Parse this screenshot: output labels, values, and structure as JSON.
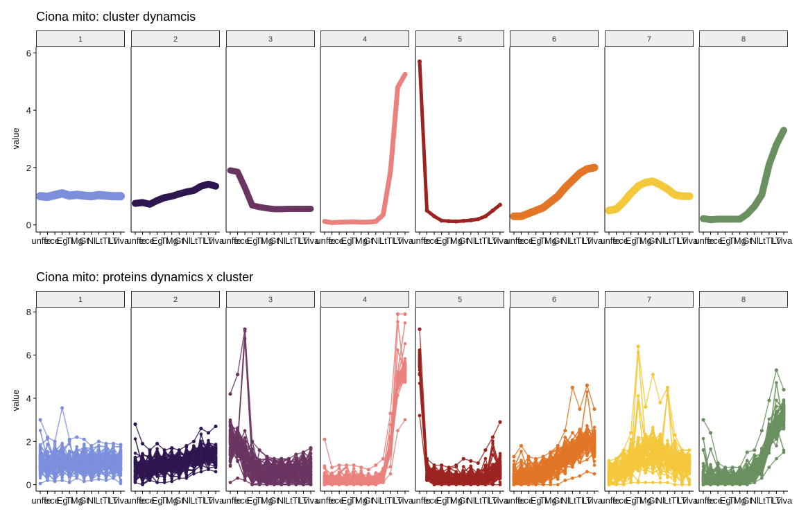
{
  "figure": {
    "panels": [
      {
        "title": "Ciona mito: cluster dynamcis",
        "ylabel": "value"
      },
      {
        "title": "Ciona mito: proteins dynamics x cluster",
        "ylabel": "value"
      }
    ],
    "facet_labels": [
      "1",
      "2",
      "3",
      "4",
      "5",
      "6",
      "7",
      "8"
    ],
    "stage_labels": [
      "unfe",
      "fe",
      "ce",
      "Eg",
      "Tl",
      "Mg",
      "Gt",
      "Nl",
      "Lt",
      "Tl",
      "Lv",
      "Tlva"
    ]
  },
  "colors": {
    "1": "#7b8fdb",
    "2": "#2e1650",
    "3": "#6a3560",
    "4": "#ea817c",
    "5": "#9c2420",
    "6": "#e27526",
    "7": "#f4c83b",
    "8": "#6a9060",
    "strip_bg": "#eeeeee",
    "strip_border": "#333333",
    "axis": "#000000"
  },
  "chart_data": [
    {
      "type": "line",
      "title": "Ciona mito: cluster dynamcis",
      "ylabel": "value",
      "ylim": [
        -0.25,
        6.2
      ],
      "yticks": [
        0,
        2,
        4,
        6
      ],
      "facets": [
        "1",
        "2",
        "3",
        "4",
        "5",
        "6",
        "7",
        "8"
      ],
      "x": [
        "unfe",
        "fe",
        "ce",
        "Eg",
        "Tl",
        "Mg",
        "Gt",
        "Nl",
        "Lt",
        "Tl",
        "Lv",
        "Tlva"
      ],
      "series": [
        {
          "facet": "1",
          "values": [
            1.0,
            0.98,
            1.04,
            1.1,
            1.02,
            1.05,
            1.02,
            1.0,
            1.04,
            1.02,
            1.0,
            1.0
          ]
        },
        {
          "facet": "2",
          "values": [
            0.75,
            0.78,
            0.72,
            0.85,
            0.95,
            1.0,
            1.08,
            1.15,
            1.2,
            1.35,
            1.42,
            1.35
          ]
        },
        {
          "facet": "3",
          "values": [
            1.9,
            1.85,
            1.3,
            0.68,
            0.62,
            0.58,
            0.55,
            0.55,
            0.56,
            0.56,
            0.56,
            0.56
          ]
        },
        {
          "facet": "4",
          "values": [
            0.12,
            0.08,
            0.09,
            0.1,
            0.11,
            0.09,
            0.1,
            0.12,
            0.35,
            1.85,
            4.8,
            5.25
          ]
        },
        {
          "facet": "5",
          "values": [
            5.7,
            0.5,
            0.3,
            0.15,
            0.13,
            0.12,
            0.14,
            0.16,
            0.2,
            0.3,
            0.5,
            0.7
          ]
        },
        {
          "facet": "6",
          "values": [
            0.3,
            0.3,
            0.4,
            0.5,
            0.6,
            0.8,
            1.0,
            1.3,
            1.55,
            1.8,
            1.95,
            2.0
          ]
        },
        {
          "facet": "7",
          "values": [
            0.5,
            0.55,
            0.8,
            1.1,
            1.35,
            1.48,
            1.52,
            1.4,
            1.25,
            1.05,
            1.0,
            1.0
          ]
        },
        {
          "facet": "8",
          "values": [
            0.22,
            0.18,
            0.2,
            0.2,
            0.2,
            0.2,
            0.38,
            0.65,
            1.05,
            2.1,
            2.8,
            3.3
          ]
        }
      ]
    },
    {
      "type": "line",
      "title": "Ciona mito: proteins dynamics x cluster",
      "ylabel": "value",
      "ylim": [
        -0.3,
        8.2
      ],
      "yticks": [
        0,
        2,
        4,
        6,
        8
      ],
      "facets": [
        "1",
        "2",
        "3",
        "4",
        "5",
        "6",
        "7",
        "8"
      ],
      "x": [
        "unfe",
        "fe",
        "ce",
        "Eg",
        "Tl",
        "Mg",
        "Gt",
        "Nl",
        "Lt",
        "Tl",
        "Lv",
        "Tlva"
      ],
      "series": [
        {
          "facet": "1",
          "values": [
            1.0,
            0.98,
            1.04,
            1.1,
            1.02,
            1.05,
            1.02,
            1.0,
            1.04,
            1.02,
            1.0,
            1.0
          ],
          "spread": 0.7,
          "min": [
            0.05,
            0.2,
            0.15,
            0.2,
            0.1,
            0.3,
            0.15,
            0.2,
            0.25,
            0.2,
            0.3,
            0.05
          ],
          "max": [
            3.0,
            2.2,
            2.0,
            3.55,
            2.1,
            2.2,
            2.1,
            1.8,
            2.0,
            1.9,
            1.9,
            1.85
          ]
        },
        {
          "facet": "2",
          "values": [
            0.75,
            0.78,
            0.72,
            0.85,
            0.95,
            1.0,
            1.08,
            1.15,
            1.2,
            1.35,
            1.42,
            1.35
          ],
          "spread": 0.6,
          "min": [
            0.1,
            0.0,
            0.2,
            0.1,
            0.1,
            0.15,
            0.3,
            0.3,
            0.5,
            0.6,
            0.7,
            0.6
          ],
          "max": [
            2.8,
            1.9,
            1.6,
            1.9,
            1.6,
            1.7,
            1.6,
            1.8,
            2.0,
            2.6,
            2.4,
            2.7
          ]
        },
        {
          "facet": "3",
          "values": [
            1.9,
            1.85,
            1.3,
            0.68,
            0.62,
            0.58,
            0.55,
            0.55,
            0.56,
            0.56,
            0.56,
            0.56
          ],
          "spread": 0.9,
          "min": [
            0.1,
            0.3,
            0.2,
            0.0,
            0.0,
            0.0,
            0.0,
            0.0,
            0.0,
            0.0,
            0.0,
            0.0
          ],
          "max": [
            4.2,
            5.1,
            7.2,
            2.0,
            1.6,
            1.3,
            1.2,
            1.2,
            1.2,
            1.4,
            1.5,
            1.7
          ]
        },
        {
          "facet": "4",
          "values": [
            0.12,
            0.08,
            0.09,
            0.1,
            0.11,
            0.09,
            0.1,
            0.12,
            0.35,
            1.85,
            4.8,
            5.25
          ],
          "spread": 0.4,
          "min": [
            0.0,
            0.0,
            0.0,
            0.0,
            0.0,
            0.0,
            0.0,
            0.0,
            0.1,
            0.5,
            2.5,
            3.0
          ],
          "max": [
            2.1,
            0.8,
            0.9,
            0.9,
            0.9,
            0.8,
            0.7,
            0.9,
            1.2,
            3.3,
            7.9,
            7.9
          ]
        },
        {
          "facet": "5",
          "values": [
            5.7,
            0.5,
            0.3,
            0.15,
            0.13,
            0.12,
            0.14,
            0.16,
            0.2,
            0.3,
            0.5,
            0.7
          ],
          "spread": 0.5,
          "min": [
            3.2,
            0.2,
            0.0,
            0.0,
            0.0,
            0.0,
            0.0,
            0.0,
            0.0,
            0.0,
            0.0,
            0.0
          ],
          "max": [
            7.2,
            1.2,
            0.9,
            0.9,
            0.8,
            0.9,
            1.2,
            1.1,
            1.0,
            1.6,
            2.2,
            2.9
          ]
        },
        {
          "facet": "6",
          "values": [
            0.3,
            0.3,
            0.4,
            0.5,
            0.6,
            0.8,
            1.0,
            1.3,
            1.55,
            1.8,
            1.95,
            2.0
          ],
          "spread": 0.7,
          "min": [
            0.0,
            0.0,
            0.0,
            0.0,
            0.0,
            0.0,
            0.0,
            0.2,
            0.3,
            0.4,
            0.6,
            0.5
          ],
          "max": [
            1.3,
            1.8,
            1.3,
            1.2,
            1.3,
            1.5,
            1.8,
            2.5,
            4.5,
            3.5,
            4.6,
            3.5
          ]
        },
        {
          "facet": "7",
          "values": [
            0.5,
            0.55,
            0.8,
            1.1,
            1.35,
            1.48,
            1.52,
            1.4,
            1.25,
            1.05,
            1.0,
            1.0
          ],
          "spread": 0.8,
          "min": [
            0.0,
            0.0,
            0.0,
            0.1,
            0.1,
            0.1,
            0.1,
            0.1,
            0.1,
            0.0,
            0.0,
            0.0
          ],
          "max": [
            1.1,
            1.2,
            1.6,
            2.4,
            6.4,
            3.6,
            5.1,
            3.8,
            4.5,
            2.3,
            1.6,
            1.6
          ]
        },
        {
          "facet": "8",
          "values": [
            0.22,
            0.18,
            0.2,
            0.2,
            0.2,
            0.2,
            0.38,
            0.65,
            1.05,
            2.1,
            2.8,
            3.3
          ],
          "spread": 0.6,
          "min": [
            0.0,
            0.0,
            0.0,
            0.0,
            0.0,
            0.0,
            0.0,
            0.1,
            0.3,
            0.8,
            1.2,
            1.5
          ],
          "max": [
            3.0,
            2.4,
            1.0,
            0.8,
            0.8,
            0.8,
            1.5,
            1.6,
            2.5,
            3.9,
            5.3,
            4.4
          ]
        }
      ]
    }
  ]
}
